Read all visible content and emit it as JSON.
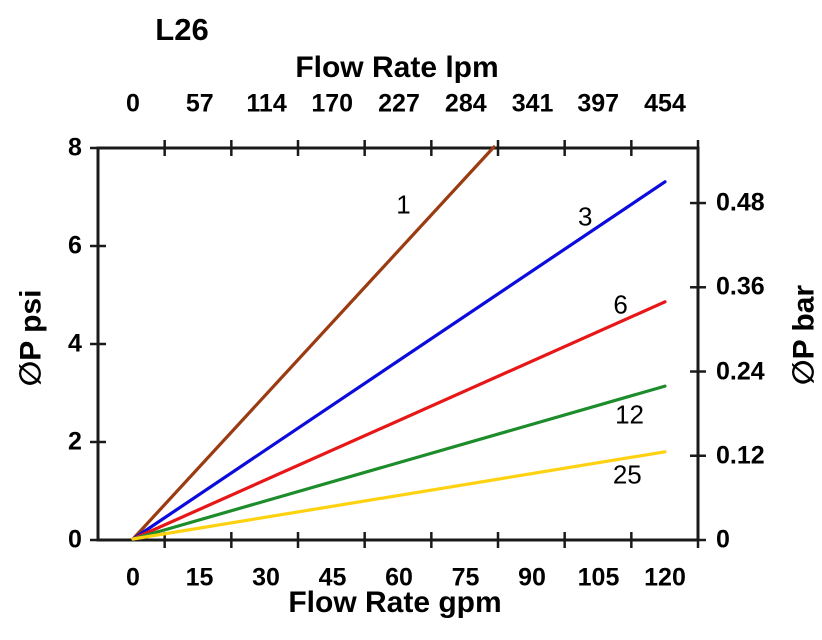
{
  "chart_data": {
    "type": "line",
    "title": "L26",
    "grid": false,
    "legend": "none",
    "top_axis": {
      "label": "Flow Rate lpm",
      "ticks": [
        0,
        57,
        114,
        170,
        227,
        284,
        341,
        397,
        454
      ],
      "range": [
        0,
        454
      ]
    },
    "bottom_axis": {
      "label": "Flow Rate gpm",
      "ticks": [
        0,
        15,
        30,
        45,
        60,
        75,
        90,
        105,
        120
      ],
      "range": [
        0,
        120
      ]
    },
    "left_axis": {
      "label": "∅P psi",
      "ticks": [
        0,
        2,
        4,
        6,
        8
      ],
      "range": [
        0,
        8
      ]
    },
    "right_axis": {
      "label": "∅P bar",
      "ticks": [
        0,
        0.12,
        0.24,
        0.36,
        0.48
      ],
      "range": [
        0,
        0.55
      ]
    },
    "axis_color": "#1a1a1a",
    "series": [
      {
        "label": "1",
        "color": "#9a3b12",
        "points_gpm_psi": [
          [
            0,
            0
          ],
          [
            81.4,
            8.0
          ]
        ],
        "label_pos_gpm_psi": [
          61.0,
          6.84
        ]
      },
      {
        "label": "3",
        "color": "#0b0bdd",
        "points_gpm_psi": [
          [
            0,
            0
          ],
          [
            120,
            7.29
          ]
        ],
        "label_pos_gpm_psi": [
          102.0,
          6.6
        ]
      },
      {
        "label": "6",
        "color": "#e81717",
        "points_gpm_psi": [
          [
            0,
            0
          ],
          [
            120,
            4.84
          ]
        ],
        "label_pos_gpm_psi": [
          110.0,
          4.8
        ]
      },
      {
        "label": "12",
        "color": "#1d8d2c",
        "points_gpm_psi": [
          [
            0,
            0
          ],
          [
            120,
            3.12
          ]
        ],
        "label_pos_gpm_psi": [
          112.0,
          2.55
        ]
      },
      {
        "label": "25",
        "color": "#ffd211",
        "points_gpm_psi": [
          [
            0,
            0
          ],
          [
            120,
            1.78
          ]
        ],
        "label_pos_gpm_psi": [
          111.5,
          1.33
        ]
      }
    ]
  }
}
